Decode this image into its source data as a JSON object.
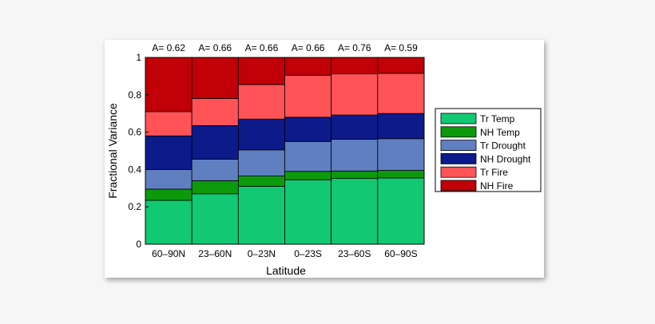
{
  "chart_data": {
    "type": "bar",
    "stacked": true,
    "categories": [
      "60–90N",
      "23–60N",
      "0–23N",
      "0–23S",
      "23–60S",
      "60–90S"
    ],
    "annotations": [
      "A= 0.62",
      "A= 0.66",
      "A= 0.66",
      "A= 0.66",
      "A= 0.76",
      "A= 0.59"
    ],
    "series": [
      {
        "name": "Tr Temp",
        "color": "#12c872",
        "values": [
          0.235,
          0.27,
          0.31,
          0.345,
          0.352,
          0.355
        ]
      },
      {
        "name": "NH Temp",
        "color": "#0c9a0c",
        "values": [
          0.06,
          0.07,
          0.055,
          0.045,
          0.04,
          0.04
        ]
      },
      {
        "name": "Tr Drought",
        "color": "#5f7fc1",
        "values": [
          0.105,
          0.115,
          0.14,
          0.16,
          0.17,
          0.17
        ]
      },
      {
        "name": "NH Drought",
        "color": "#0c1a8a",
        "values": [
          0.18,
          0.18,
          0.165,
          0.13,
          0.13,
          0.135
        ]
      },
      {
        "name": "Tr Fire",
        "color": "#ff5358",
        "values": [
          0.13,
          0.145,
          0.185,
          0.225,
          0.22,
          0.215
        ]
      },
      {
        "name": "NH Fire",
        "color": "#c00006",
        "values": [
          0.29,
          0.22,
          0.145,
          0.095,
          0.088,
          0.085
        ]
      }
    ],
    "xlabel": "Latitude",
    "ylabel": "Fractional Variance",
    "ylim": [
      0,
      1
    ],
    "yticks": [
      "0",
      "0.2",
      "0.4",
      "0.6",
      "0.8",
      "1"
    ],
    "grid": false,
    "legend_position": "right"
  }
}
